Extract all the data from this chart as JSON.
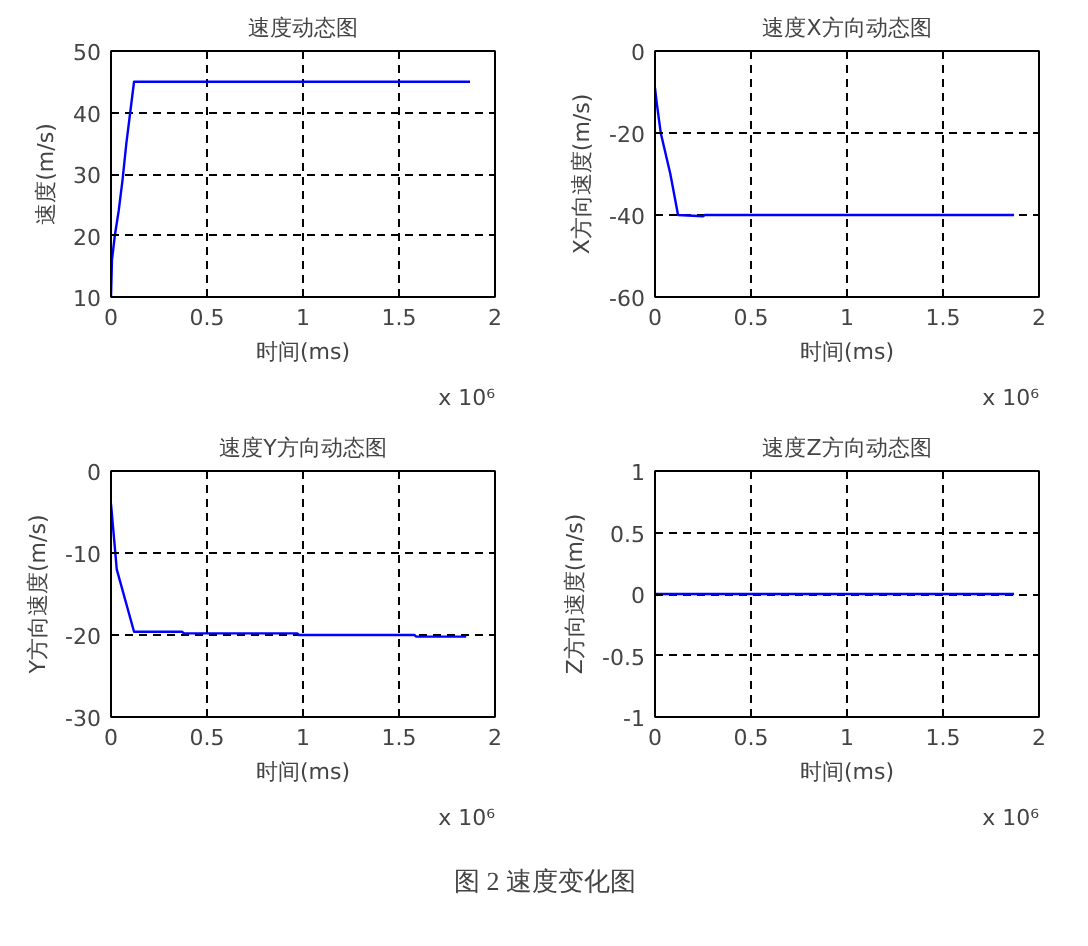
{
  "chart_data": [
    {
      "type": "line",
      "title": "速度动态图",
      "xlabel": "时间(ms)",
      "ylabel": "速度(m/s)",
      "annotations": [
        "x 10⁶"
      ],
      "x": [
        0,
        0.005,
        0.02,
        0.04,
        0.06,
        0.08,
        0.1,
        0.12,
        1.87
      ],
      "series": [
        {
          "color": "#0000ff",
          "values": [
            10,
            16,
            20,
            24,
            29,
            35,
            40,
            45,
            45
          ]
        }
      ],
      "xlim": [
        0,
        2
      ],
      "ylim": [
        10,
        50
      ],
      "xticks": [
        0,
        0.5,
        1,
        1.5,
        2
      ],
      "yticks": [
        10,
        20,
        30,
        40,
        50
      ],
      "grid": true,
      "marker": "none",
      "line_style": "solid"
    },
    {
      "type": "line",
      "title": "速度X方向动态图",
      "xlabel": "时间(ms)",
      "ylabel": "X方向速度(m/s)",
      "annotations": [
        "x 10⁶"
      ],
      "x": [
        0,
        0.01,
        0.03,
        0.08,
        0.12,
        0.25,
        0.26,
        1.87
      ],
      "series": [
        {
          "color": "#0000ff",
          "values": [
            -9,
            -13,
            -20,
            -30,
            -40,
            -40.3,
            -40,
            -40
          ]
        }
      ],
      "xlim": [
        0,
        2
      ],
      "ylim": [
        -60,
        0
      ],
      "xticks": [
        0,
        0.5,
        1,
        1.5,
        2
      ],
      "yticks": [
        -60,
        -40,
        -20,
        0
      ],
      "grid": true,
      "marker": "none",
      "line_style": "solid"
    },
    {
      "type": "line",
      "title": "速度Y方向动态图",
      "xlabel": "时间(ms)",
      "ylabel": "Y方向速度(m/s)",
      "annotations": [
        "x 10⁶"
      ],
      "x": [
        0,
        0.03,
        0.12,
        0.37,
        0.38,
        0.97,
        0.98,
        1.58,
        1.59,
        1.85
      ],
      "series": [
        {
          "color": "#0000ff",
          "values": [
            -4,
            -12,
            -19.6,
            -19.6,
            -19.8,
            -19.8,
            -20,
            -20,
            -20.2,
            -20.2
          ]
        }
      ],
      "xlim": [
        0,
        2
      ],
      "ylim": [
        -30,
        0
      ],
      "xticks": [
        0,
        0.5,
        1,
        1.5,
        2
      ],
      "yticks": [
        -30,
        -20,
        -10,
        0
      ],
      "grid": true,
      "marker": "none",
      "line_style": "solid"
    },
    {
      "type": "line",
      "title": "速度Z方向动态图",
      "xlabel": "时间(ms)",
      "ylabel": "Z方向速度(m/s)",
      "annotations": [
        "x 10⁶"
      ],
      "x": [
        0,
        1.87
      ],
      "series": [
        {
          "color": "#0000ff",
          "values": [
            0,
            0
          ]
        }
      ],
      "xlim": [
        0,
        2
      ],
      "ylim": [
        -1,
        1
      ],
      "xticks": [
        0,
        0.5,
        1,
        1.5,
        2
      ],
      "yticks": [
        -1,
        -0.5,
        0,
        0.5,
        1
      ],
      "grid": true,
      "marker": "none",
      "line_style": "solid"
    },
    {
      "type": "other",
      "annotations": [
        "图 2 速度变化图"
      ]
    }
  ]
}
